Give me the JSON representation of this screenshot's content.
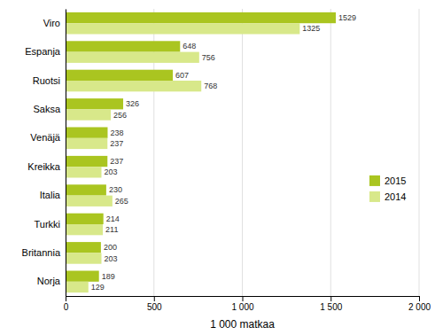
{
  "chart_data": {
    "type": "bar",
    "orientation": "horizontal",
    "categories": [
      "Viro",
      "Espanja",
      "Ruotsi",
      "Saksa",
      "Venäjä",
      "Kreikka",
      "Italia",
      "Turkki",
      "Britannia",
      "Norja"
    ],
    "series": [
      {
        "name": "2015",
        "color": "#aac520",
        "values": [
          1529,
          648,
          607,
          326,
          238,
          237,
          230,
          214,
          200,
          189
        ]
      },
      {
        "name": "2014",
        "color": "#d8e88a",
        "values": [
          1325,
          756,
          768,
          256,
          237,
          203,
          265,
          211,
          203,
          129
        ]
      }
    ],
    "xlabel": "1 000 matkaa",
    "xlim": [
      0,
      2000
    ],
    "xticks": [
      0,
      500,
      {
        "value": 1000,
        "label": "1 000"
      },
      {
        "value": 1500,
        "label": "1 500"
      },
      {
        "value": 2000,
        "label": "2 000"
      }
    ],
    "grid": true,
    "legend": "right",
    "data_labels": true
  }
}
